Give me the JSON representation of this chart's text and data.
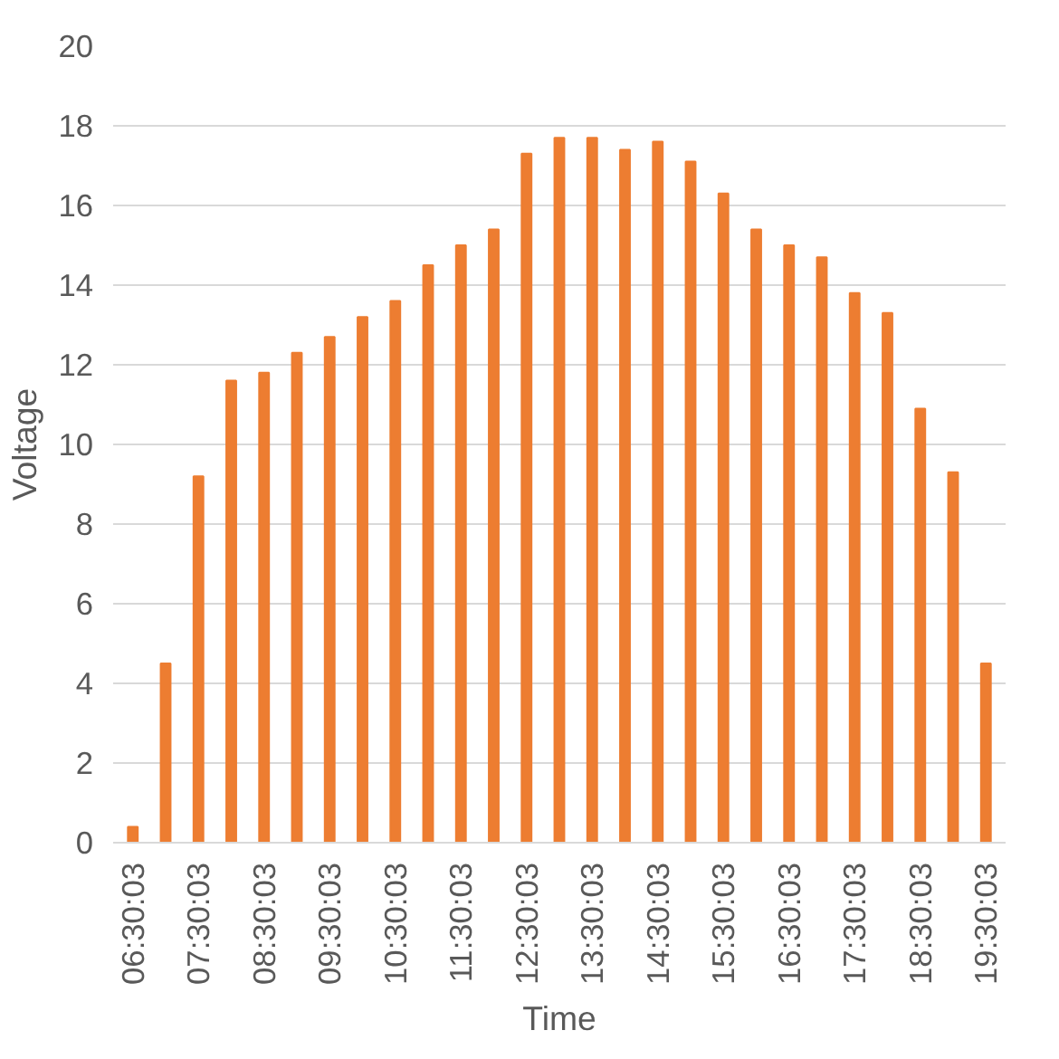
{
  "chart_data": {
    "type": "bar",
    "xlabel": "Time",
    "ylabel": "Voltage",
    "categories": [
      "06:30:03",
      null,
      "07:30:03",
      null,
      "08:30:03",
      null,
      "09:30:03",
      null,
      "10:30:03",
      null,
      "11:30:03",
      null,
      "12:30:03",
      null,
      "13:30:03",
      null,
      "14:30:03",
      null,
      "15:30:03",
      null,
      "16:30:03",
      null,
      "17:30:03",
      null,
      "18:30:03",
      null,
      "19:30:03"
    ],
    "values": [
      0.4,
      4.5,
      9.2,
      11.6,
      11.8,
      12.3,
      12.7,
      13.2,
      13.6,
      14.5,
      15.0,
      15.4,
      17.3,
      17.7,
      17.7,
      17.4,
      17.6,
      17.1,
      16.3,
      15.4,
      15.0,
      14.7,
      13.8,
      13.3,
      10.9,
      9.3,
      4.5
    ],
    "color": "#ed7d31",
    "ylim": [
      0,
      20
    ],
    "yticks": [
      0,
      2,
      4,
      6,
      8,
      10,
      12,
      14,
      16,
      18,
      20
    ],
    "grid": "y"
  }
}
